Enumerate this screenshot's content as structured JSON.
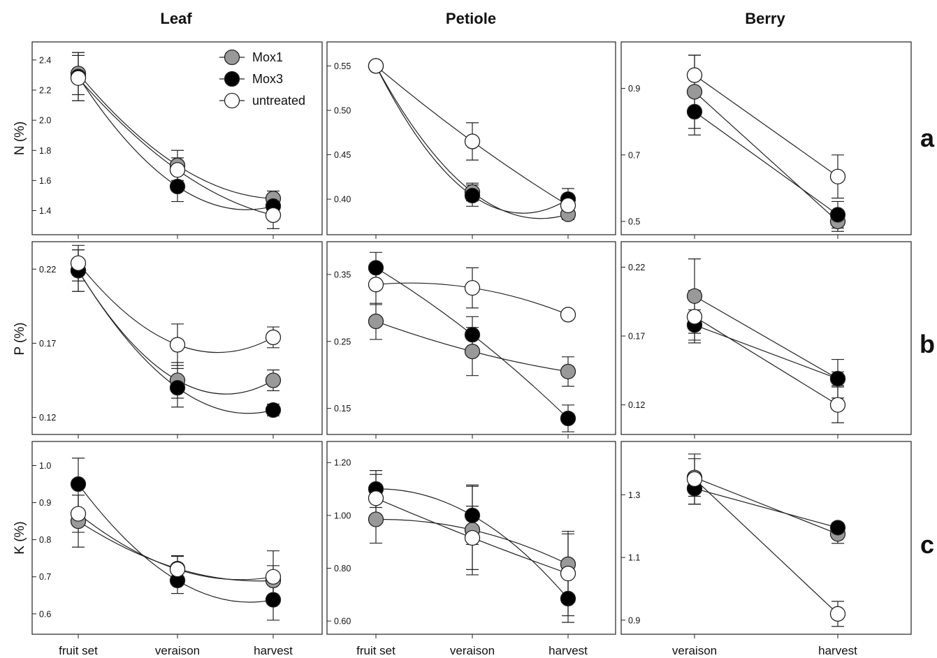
{
  "figure": {
    "column_titles": [
      "Leaf",
      "Petiole",
      "Berry"
    ],
    "row_ylabels": [
      "N (%)",
      "P (%)",
      "K (%)"
    ],
    "row_letters": [
      "a",
      "b",
      "c"
    ]
  },
  "legend": {
    "entries": [
      {
        "label": "Mox1",
        "fill": "#999999"
      },
      {
        "label": "Mox3",
        "fill": "#000000"
      },
      {
        "label": "untreated",
        "fill": "#ffffff"
      }
    ]
  },
  "colors": {
    "Mox1": "#999999",
    "Mox3": "#000000",
    "untreated": "#ffffff",
    "stroke": "#222222"
  },
  "chart_data": [
    {
      "type": "line",
      "tissue": "Leaf",
      "nutrient": "N (%)",
      "x": [
        "fruit set",
        "veraison",
        "harvest"
      ],
      "x_tick_labels": [],
      "ylim": [
        1.24,
        2.52
      ],
      "yticks": [
        "1.4",
        "1.6",
        "1.8",
        "2.0",
        "2.2",
        "2.4"
      ],
      "series": [
        {
          "name": "Mox1",
          "values": [
            2.31,
            1.7,
            1.48
          ],
          "err": [
            0.14,
            0.1,
            0.05
          ]
        },
        {
          "name": "Mox3",
          "values": [
            2.29,
            1.56,
            1.43
          ],
          "err": [
            0.16,
            0.1,
            0.05
          ]
        },
        {
          "name": "untreated",
          "values": [
            2.28,
            1.67,
            1.37
          ],
          "err": [
            0.15,
            0.08,
            0.09
          ]
        }
      ]
    },
    {
      "type": "line",
      "tissue": "Petiole",
      "nutrient": "N (%)",
      "x": [
        "fruit set",
        "veraison",
        "harvest"
      ],
      "x_tick_labels": [],
      "ylim": [
        0.36,
        0.577
      ],
      "yticks": [
        "0.40",
        "0.45",
        "0.50",
        "0.55"
      ],
      "series": [
        {
          "name": "Mox1",
          "values": [
            0.55,
            0.408,
            0.383
          ],
          "err": [
            0,
            0.01,
            0.006
          ]
        },
        {
          "name": "Mox3",
          "values": [
            0.55,
            0.404,
            0.4
          ],
          "err": [
            0,
            0.012,
            0.012
          ]
        },
        {
          "name": "untreated",
          "values": [
            0.55,
            0.465,
            0.393
          ],
          "err": [
            0,
            0.021,
            0.012
          ]
        }
      ]
    },
    {
      "type": "line",
      "tissue": "Berry",
      "nutrient": "N (%)",
      "x": [
        "veraison",
        "harvest"
      ],
      "x_tick_labels": [],
      "ylim": [
        0.46,
        1.04
      ],
      "yticks": [
        "0.5",
        "0.7",
        "0.9"
      ],
      "series": [
        {
          "name": "Mox1",
          "values": [
            0.89,
            0.5
          ],
          "err": [
            0.11,
            0.03
          ]
        },
        {
          "name": "Mox3",
          "values": [
            0.83,
            0.52
          ],
          "err": [
            0.07,
            0.04
          ]
        },
        {
          "name": "untreated",
          "values": [
            0.94,
            0.635
          ],
          "err": [
            0.06,
            0.065
          ]
        }
      ]
    },
    {
      "type": "line",
      "tissue": "Leaf",
      "nutrient": "P (%)",
      "x": [
        "fruit set",
        "veraison",
        "harvest"
      ],
      "x_tick_labels": [],
      "ylim": [
        0.1085,
        0.2385
      ],
      "yticks": [
        "0.12",
        "0.17",
        "0.22"
      ],
      "series": [
        {
          "name": "Mox1",
          "values": [
            0.219,
            0.145,
            0.145
          ],
          "err": [
            0.014,
            0.012,
            0.007
          ]
        },
        {
          "name": "Mox3",
          "values": [
            0.219,
            0.14,
            0.125
          ],
          "err": [
            0.014,
            0.013,
            0.004
          ]
        },
        {
          "name": "untreated",
          "values": [
            0.224,
            0.169,
            0.174
          ],
          "err": [
            0.012,
            0.014,
            0.007
          ]
        }
      ]
    },
    {
      "type": "line",
      "tissue": "Petiole",
      "nutrient": "P (%)",
      "x": [
        "fruit set",
        "veraison",
        "harvest"
      ],
      "x_tick_labels": [],
      "ylim": [
        0.111,
        0.399
      ],
      "yticks": [
        "0.15",
        "0.25",
        "0.35"
      ],
      "series": [
        {
          "name": "Mox1",
          "values": [
            0.28,
            0.235,
            0.205
          ],
          "err": [
            0.027,
            0.036,
            0.022
          ]
        },
        {
          "name": "Mox3",
          "values": [
            0.36,
            0.26,
            0.135
          ],
          "err": [
            0.023,
            0.027,
            0.02
          ]
        },
        {
          "name": "untreated",
          "values": [
            0.335,
            0.33,
            0.29
          ],
          "err": [
            0.03,
            0.03,
            0
          ]
        }
      ]
    },
    {
      "type": "line",
      "tissue": "Berry",
      "nutrient": "P (%)",
      "x": [
        "veraison",
        "harvest"
      ],
      "x_tick_labels": [],
      "ylim": [
        0.0985,
        0.2385
      ],
      "yticks": [
        "0.12",
        "0.17",
        "0.22"
      ],
      "series": [
        {
          "name": "Mox1",
          "values": [
            0.199,
            0.139
          ],
          "err": [
            0.027,
            0.005
          ]
        },
        {
          "name": "Mox3",
          "values": [
            0.178,
            0.139
          ],
          "err": [
            0.011,
            0.014
          ]
        },
        {
          "name": "untreated",
          "values": [
            0.184,
            0.12
          ],
          "err": [
            0.019,
            0.013
          ]
        }
      ]
    },
    {
      "type": "line",
      "tissue": "Leaf",
      "nutrient": "K (%)",
      "x": [
        "fruit set",
        "veraison",
        "harvest"
      ],
      "x_tick_labels": [
        "fruit set",
        "veraison",
        "harvest"
      ],
      "ylim": [
        0.545,
        1.065
      ],
      "yticks": [
        "0.6",
        "0.7",
        "0.8",
        "0.9",
        "1.0"
      ],
      "series": [
        {
          "name": "Mox1",
          "values": [
            0.85,
            0.722,
            0.69
          ],
          "err": [
            0.07,
            0.035,
            0.04
          ]
        },
        {
          "name": "Mox3",
          "values": [
            0.95,
            0.69,
            0.638
          ],
          "err": [
            0.07,
            0.035,
            0.055
          ]
        },
        {
          "name": "untreated",
          "values": [
            0.87,
            0.72,
            0.7
          ],
          "err": [
            0.05,
            0.035,
            0.07
          ]
        }
      ]
    },
    {
      "type": "line",
      "tissue": "Petiole",
      "nutrient": "K (%)",
      "x": [
        "fruit set",
        "veraison",
        "harvest"
      ],
      "x_tick_labels": [
        "fruit set",
        "veraison",
        "harvest"
      ],
      "ylim": [
        0.55,
        1.28
      ],
      "yticks": [
        "0.60",
        "0.80",
        "1.00",
        "1.20"
      ],
      "series": [
        {
          "name": "Mox1",
          "values": [
            0.985,
            0.945,
            0.815
          ],
          "err": [
            0.09,
            0.17,
            0.115
          ]
        },
        {
          "name": "Mox3",
          "values": [
            1.1,
            1.0,
            0.685
          ],
          "err": [
            0.07,
            0.11,
            0.09
          ]
        },
        {
          "name": "untreated",
          "values": [
            1.065,
            0.915,
            0.78
          ],
          "err": [
            0.09,
            0.12,
            0.16
          ]
        }
      ]
    },
    {
      "type": "line",
      "tissue": "Berry",
      "nutrient": "K (%)",
      "x": [
        "veraison",
        "harvest"
      ],
      "x_tick_labels": [
        "veraison",
        "harvest"
      ],
      "ylim": [
        0.855,
        1.47
      ],
      "yticks": [
        "0.9",
        "1.1",
        "1.3"
      ],
      "series": [
        {
          "name": "Mox1",
          "values": [
            1.355,
            1.175
          ],
          "err": [
            0.06,
            0.03
          ]
        },
        {
          "name": "Mox3",
          "values": [
            1.32,
            1.195
          ],
          "err": [
            0.05,
            0.015
          ]
        },
        {
          "name": "untreated",
          "values": [
            1.35,
            0.92
          ],
          "err": [
            0.08,
            0.04
          ]
        }
      ]
    }
  ]
}
